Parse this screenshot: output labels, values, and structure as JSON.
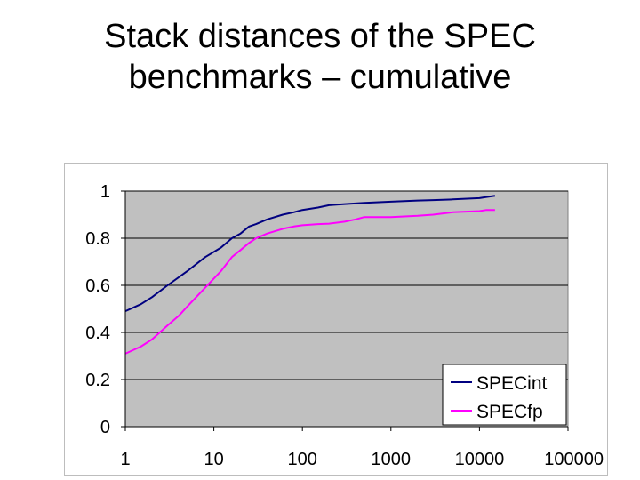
{
  "title": {
    "line1": "Stack distances of the SPEC",
    "line2": "benchmarks – cumulative"
  },
  "chart_data": {
    "type": "line",
    "x_scale": "log",
    "xlim": [
      1,
      100000
    ],
    "ylim": [
      0,
      1
    ],
    "x_ticks": [
      "1",
      "10",
      "100",
      "1000",
      "10000",
      "100000"
    ],
    "y_ticks": [
      "0",
      "0.2",
      "0.4",
      "0.6",
      "0.8",
      "1"
    ],
    "grid": "horizontal",
    "plot_background": "#c0c0c0",
    "legend_position": "bottom-right",
    "series": [
      {
        "name": "SPECint",
        "color": "#000080",
        "x": [
          1,
          1.5,
          2,
          3,
          5,
          8,
          12,
          16,
          20,
          25,
          30,
          40,
          60,
          80,
          100,
          150,
          200,
          300,
          500,
          1000,
          2000,
          3000,
          5000,
          10000,
          12000,
          15000
        ],
        "y": [
          0.49,
          0.52,
          0.55,
          0.6,
          0.66,
          0.72,
          0.76,
          0.8,
          0.82,
          0.85,
          0.86,
          0.88,
          0.9,
          0.91,
          0.92,
          0.93,
          0.94,
          0.945,
          0.95,
          0.955,
          0.96,
          0.962,
          0.965,
          0.97,
          0.975,
          0.98
        ]
      },
      {
        "name": "SPECfp",
        "color": "#ff00ff",
        "x": [
          1,
          1.5,
          2,
          3,
          4,
          5,
          8,
          12,
          16,
          20,
          25,
          30,
          40,
          60,
          80,
          100,
          150,
          200,
          300,
          400,
          500,
          1000,
          2000,
          3000,
          5000,
          10000,
          12000,
          15000
        ],
        "y": [
          0.31,
          0.34,
          0.37,
          0.43,
          0.47,
          0.51,
          0.59,
          0.66,
          0.72,
          0.75,
          0.78,
          0.8,
          0.82,
          0.84,
          0.85,
          0.855,
          0.86,
          0.862,
          0.87,
          0.88,
          0.89,
          0.89,
          0.895,
          0.9,
          0.91,
          0.915,
          0.92,
          0.92
        ]
      }
    ]
  }
}
